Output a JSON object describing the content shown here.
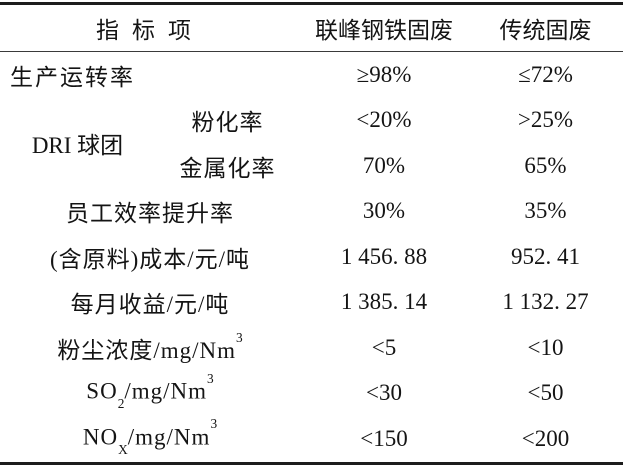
{
  "table": {
    "header": {
      "indicator": "指标项",
      "lianfeng": "联峰钢铁固废",
      "traditional": "传统固废"
    },
    "rows": {
      "production_rate": {
        "label": "生产运转率",
        "lianfeng": "≥98%",
        "traditional": "≤72%"
      },
      "dri_pellet": {
        "group_label": "DRI 球团",
        "pulverization": {
          "label": "粉化率",
          "lianfeng": "<20%",
          "traditional": ">25%"
        },
        "metallization": {
          "label": "金属化率",
          "lianfeng": "70%",
          "traditional": "65%"
        }
      },
      "staff_efficiency": {
        "label": "员工效率提升率",
        "lianfeng": "30%",
        "traditional": "35%"
      },
      "cost": {
        "label": "(含原料)成本/元/吨",
        "lianfeng": "1 456. 88",
        "traditional": "952. 41"
      },
      "monthly_income": {
        "label": "每月收益/元/吨",
        "lianfeng": "1 385. 14",
        "traditional": "1 132. 27"
      },
      "dust": {
        "label_base": "粉尘浓度/mg/Nm",
        "label_sup": "3",
        "lianfeng": "<5",
        "traditional": "<10"
      },
      "so2": {
        "label_pre": "SO",
        "label_sub": "2",
        "label_mid": "/mg/Nm",
        "label_sup": "3",
        "lianfeng": "<30",
        "traditional": "<50"
      },
      "nox": {
        "label_pre": "NO",
        "label_sub": "X",
        "label_mid": "/mg/Nm",
        "label_sup": "3",
        "lianfeng": "<150",
        "traditional": "<200"
      }
    }
  }
}
